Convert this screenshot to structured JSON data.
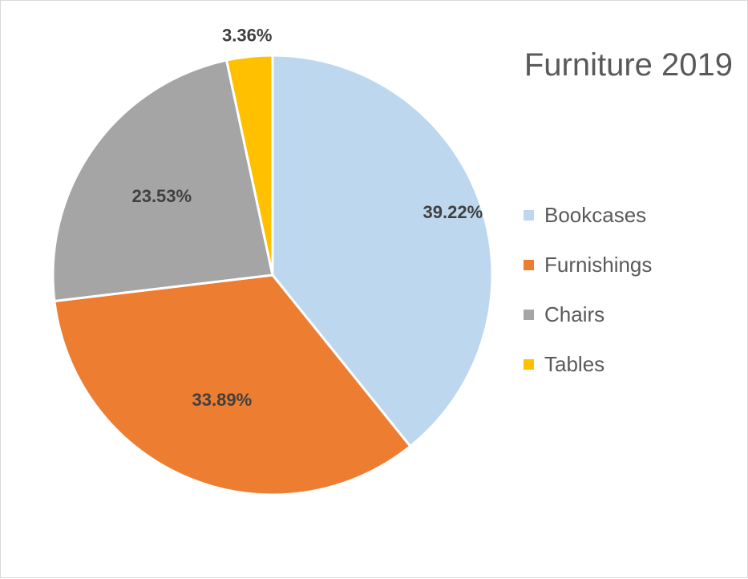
{
  "chart_data": {
    "type": "pie",
    "title": "Furniture 2019",
    "categories": [
      "Bookcases",
      "Furnishings",
      "Chairs",
      "Tables"
    ],
    "values": [
      39.22,
      33.89,
      23.53,
      3.36
    ],
    "labels": [
      "39.22%",
      "33.89%",
      "23.53%",
      "3.36%"
    ],
    "colors": [
      "#bdd7ee",
      "#ed7d31",
      "#a5a5a5",
      "#ffc000"
    ],
    "legend_position": "right"
  }
}
